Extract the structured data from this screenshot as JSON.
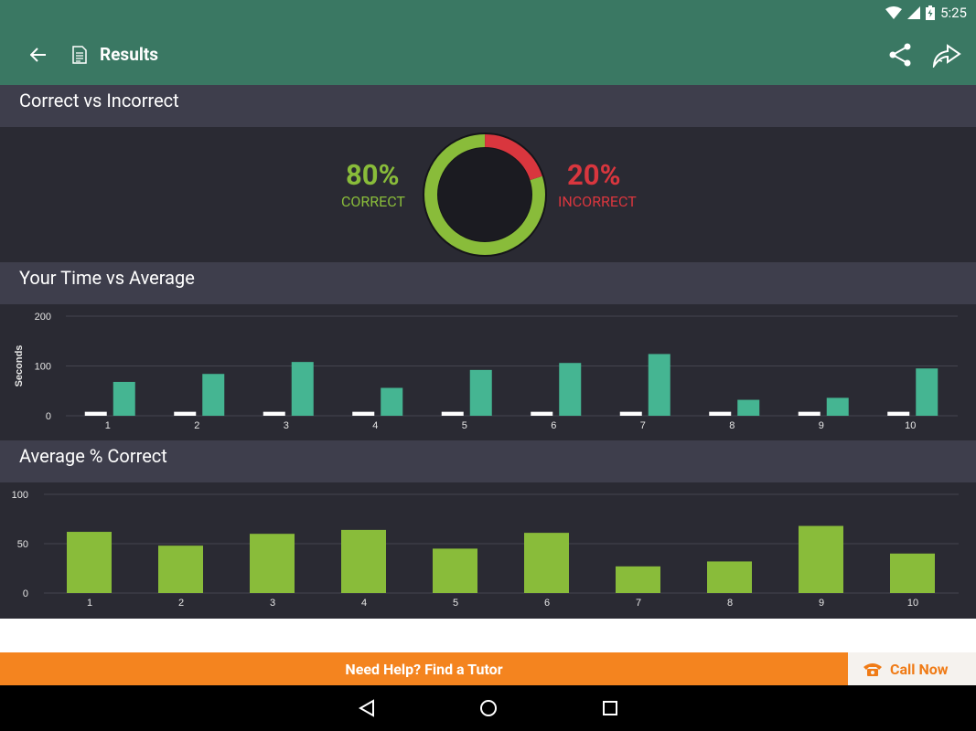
{
  "status_bar": {
    "time": "5:25"
  },
  "app_bar": {
    "title": "Results"
  },
  "sections": {
    "correct_vs_incorrect": "Correct vs Incorrect",
    "time_vs_average": "Your Time vs Average",
    "average_correct": "Average % Correct"
  },
  "donut": {
    "correct_pct": "80%",
    "correct_label": "CORRECT",
    "incorrect_pct": "20%",
    "incorrect_label": "INCORRECT",
    "correct_fraction": 0.8,
    "incorrect_fraction": 0.2,
    "correct_color": "#89bc3a",
    "incorrect_color": "#d9363e"
  },
  "chart_data": [
    {
      "type": "bar",
      "title": "Your Time vs Average",
      "ylabel": "Seconds",
      "ylim": [
        0,
        200
      ],
      "yticks": [
        0,
        100,
        200
      ],
      "categories": [
        "1",
        "2",
        "3",
        "4",
        "5",
        "6",
        "7",
        "8",
        "9",
        "10"
      ],
      "series": [
        {
          "color": "#ffffff",
          "values": [
            8,
            8,
            8,
            8,
            8,
            8,
            8,
            8,
            8,
            8
          ]
        },
        {
          "color": "#45b592",
          "values": [
            68,
            84,
            108,
            56,
            92,
            106,
            124,
            32,
            36,
            95
          ]
        }
      ],
      "grid": true
    },
    {
      "type": "bar",
      "title": "Average % Correct",
      "ylim": [
        0,
        100
      ],
      "yticks": [
        0,
        50,
        100
      ],
      "categories": [
        "1",
        "2",
        "3",
        "4",
        "5",
        "6",
        "7",
        "8",
        "9",
        "10"
      ],
      "series": [
        {
          "color": "#89bc3a",
          "values": [
            62,
            48,
            60,
            64,
            45,
            61,
            27,
            32,
            68,
            40
          ]
        }
      ],
      "grid": true
    }
  ],
  "footer": {
    "banner_text": "Need Help? Find a Tutor",
    "call_label": "Call Now",
    "accent": "#f4841f"
  },
  "icons": {
    "back": "arrow-left-icon",
    "document": "document-icon",
    "share": "share-icon",
    "forward": "forward-icon",
    "phone": "phone-icon",
    "nav_back": "triangle-back-icon",
    "nav_home": "circle-home-icon",
    "nav_recents": "square-recents-icon"
  }
}
